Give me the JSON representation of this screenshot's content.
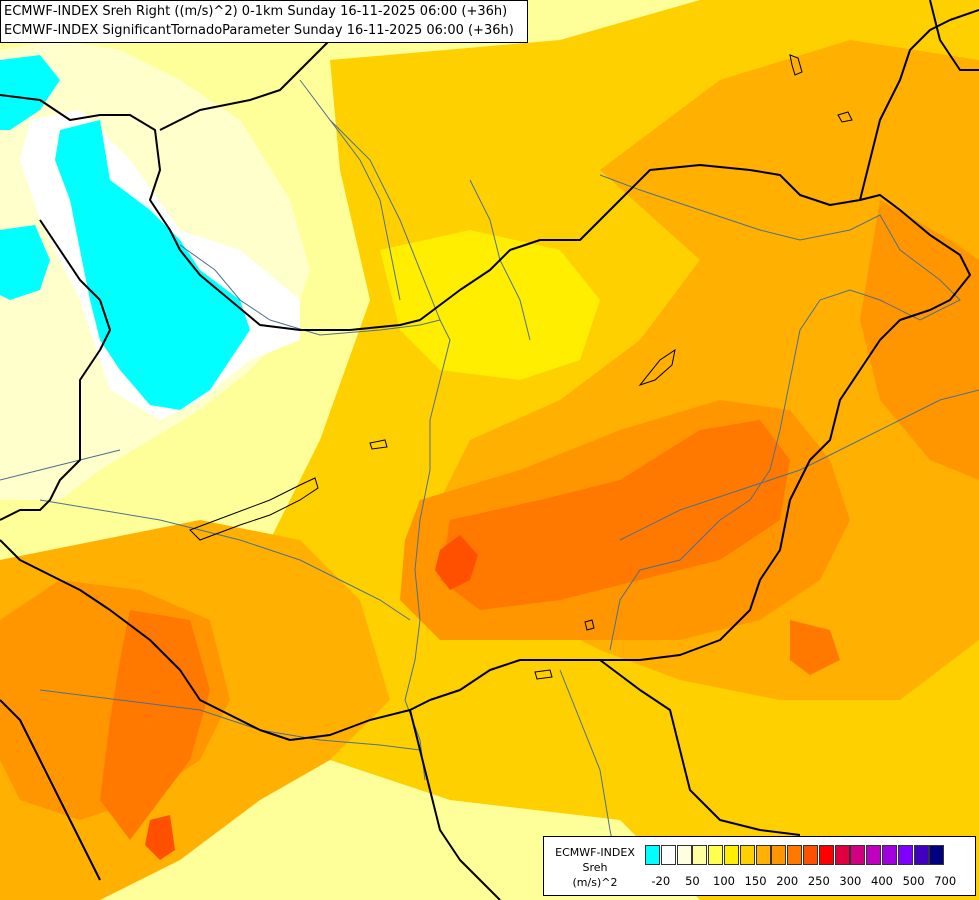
{
  "header": {
    "line1": "ECMWF-INDEX Sreh Right ((m/s)^2) 0-1km Sunday 16-11-2025 06:00 (+36h)",
    "line2": "ECMWF-INDEX SignificantTornadoParameter Sunday 16-11-2025 06:00 (+36h)"
  },
  "legend": {
    "title": [
      "ECMWF-INDEX",
      "Sreh",
      "(m/s)^2"
    ],
    "colors": [
      "#00ffff",
      "#ffffff",
      "#ffffe0",
      "#ffffa0",
      "#ffff50",
      "#ffee00",
      "#ffd000",
      "#ffb000",
      "#ff9600",
      "#ff7800",
      "#ff5000",
      "#ff0000",
      "#e00040",
      "#d00080",
      "#c000c0",
      "#a000e0",
      "#8000ff",
      "#4000c0",
      "#000080"
    ],
    "ticks": [
      "-20",
      "50",
      "100",
      "150",
      "200",
      "250",
      "300",
      "400",
      "500",
      "700"
    ]
  },
  "map": {
    "palette": {
      "cyan": "#00ffff",
      "white": "#ffffff",
      "pale": "#ffffcc",
      "lightyellow": "#ffff99",
      "yellow": "#ffee00",
      "gold": "#ffd000",
      "amber": "#ffb000",
      "orange": "#ff9600",
      "darkorange": "#ff7800",
      "red": "#ff5000",
      "border": "#000000",
      "river": "#4f6f8f"
    }
  }
}
